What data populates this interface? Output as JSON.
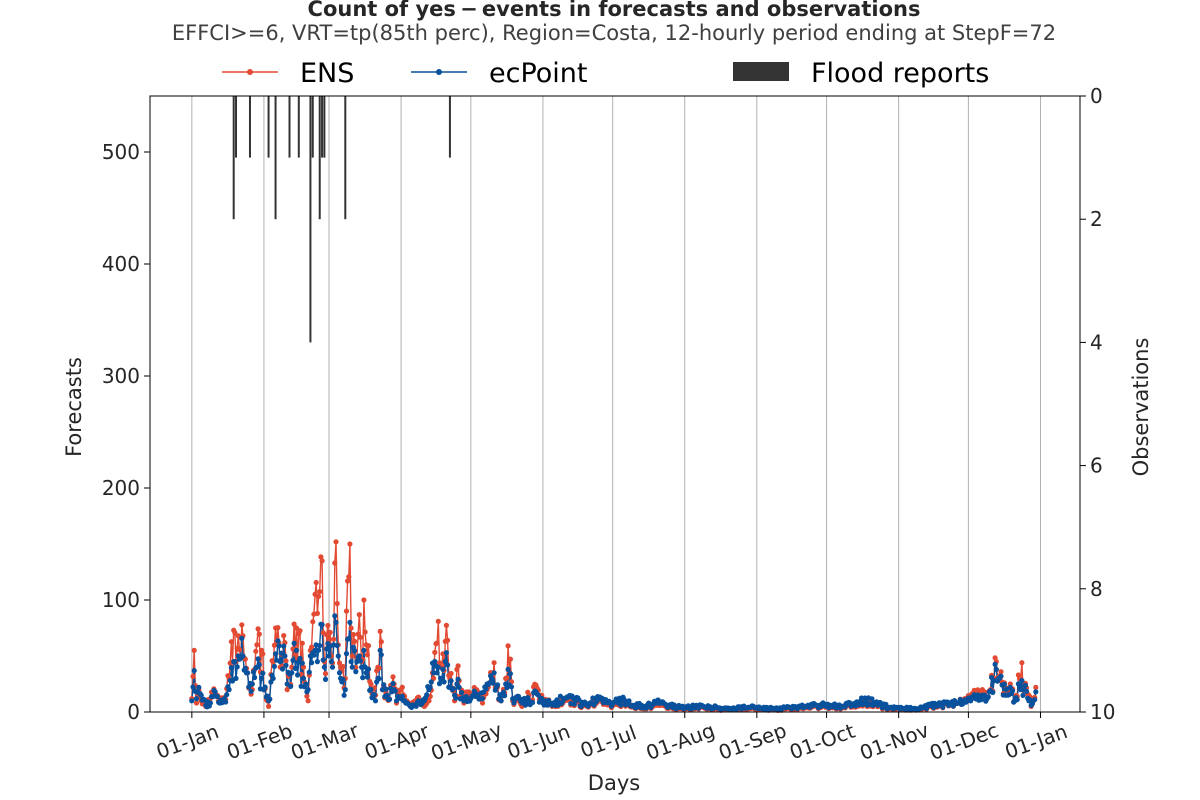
{
  "chart_data": {
    "type": "line",
    "title": "Count of yes − events in forecasts and observations",
    "subtitle": "EFFCI>=6, VRT=tp(85th perc), Region=Costa, 12-hourly period ending at StepF=72",
    "xlabel": "Days",
    "ylabel": "Forecasts",
    "ylabel_right": "Observations",
    "xtick_labels": [
      "01-Jan",
      "01-Feb",
      "01-Mar",
      "01-Apr",
      "01-May",
      "01-Jun",
      "01-Jul",
      "01-Aug",
      "01-Sep",
      "01-Oct",
      "01-Nov",
      "01-Dec",
      "01-Jan"
    ],
    "xtick_days": [
      0,
      31,
      59,
      90,
      120,
      151,
      181,
      212,
      243,
      273,
      304,
      334,
      365
    ],
    "xlim": [
      -18,
      382
    ],
    "ylim": [
      0,
      550
    ],
    "yticks": [
      0,
      100,
      200,
      300,
      400,
      500
    ],
    "y2lim": [
      10,
      0
    ],
    "y2ticks": [
      0,
      2,
      4,
      6,
      8,
      10
    ],
    "grid": "vertical",
    "legend": {
      "placement": "top",
      "entries": [
        {
          "label": "ENS",
          "kind": "line-marker",
          "color": "#e34a33"
        },
        {
          "label": "ecPoint",
          "kind": "line-marker",
          "color": "#08519c"
        },
        {
          "label": "Flood reports",
          "kind": "bar",
          "color": "#333333"
        }
      ]
    },
    "series": [
      {
        "name": "ENS",
        "color": "#e34a33",
        "anchors": [
          [
            0,
            12
          ],
          [
            1,
            55
          ],
          [
            2,
            8
          ],
          [
            3,
            20
          ],
          [
            4,
            10
          ],
          [
            6,
            5
          ],
          [
            8,
            12
          ],
          [
            10,
            18
          ],
          [
            12,
            10
          ],
          [
            14,
            13
          ],
          [
            16,
            30
          ],
          [
            18,
            73
          ],
          [
            19,
            45
          ],
          [
            20,
            68
          ],
          [
            21,
            48
          ],
          [
            22,
            68
          ],
          [
            24,
            35
          ],
          [
            26,
            20
          ],
          [
            28,
            60
          ],
          [
            30,
            55
          ],
          [
            31,
            20
          ],
          [
            33,
            5
          ],
          [
            35,
            45
          ],
          [
            36,
            75
          ],
          [
            38,
            40
          ],
          [
            40,
            62
          ],
          [
            41,
            20
          ],
          [
            43,
            40
          ],
          [
            45,
            75
          ],
          [
            46,
            70
          ],
          [
            48,
            40
          ],
          [
            50,
            10
          ],
          [
            51,
            55
          ],
          [
            53,
            105
          ],
          [
            54,
            88
          ],
          [
            56,
            135
          ],
          [
            57,
            45
          ],
          [
            59,
            65
          ],
          [
            60,
            50
          ],
          [
            61,
            65
          ],
          [
            62,
            152
          ],
          [
            63,
            60
          ],
          [
            64,
            40
          ],
          [
            66,
            30
          ],
          [
            67,
            117
          ],
          [
            68,
            150
          ],
          [
            69,
            50
          ],
          [
            71,
            48
          ],
          [
            72,
            87
          ],
          [
            73,
            45
          ],
          [
            74,
            100
          ],
          [
            75,
            60
          ],
          [
            77,
            25
          ],
          [
            79,
            15
          ],
          [
            80,
            40
          ],
          [
            81,
            72
          ],
          [
            82,
            20
          ],
          [
            84,
            12
          ],
          [
            86,
            22
          ],
          [
            87,
            25
          ],
          [
            88,
            8
          ],
          [
            90,
            20
          ],
          [
            92,
            10
          ],
          [
            94,
            5
          ],
          [
            96,
            10
          ],
          [
            98,
            10
          ],
          [
            100,
            5
          ],
          [
            102,
            10
          ],
          [
            104,
            30
          ],
          [
            106,
            81
          ],
          [
            107,
            40
          ],
          [
            108,
            52
          ],
          [
            109,
            63
          ],
          [
            110,
            64
          ],
          [
            111,
            30
          ],
          [
            113,
            10
          ],
          [
            114,
            38
          ],
          [
            115,
            28
          ],
          [
            117,
            8
          ],
          [
            119,
            18
          ],
          [
            120,
            15
          ],
          [
            121,
            17
          ],
          [
            123,
            18
          ],
          [
            125,
            8
          ],
          [
            127,
            20
          ],
          [
            129,
            35
          ],
          [
            130,
            44
          ],
          [
            131,
            20
          ],
          [
            133,
            10
          ],
          [
            135,
            30
          ],
          [
            136,
            59
          ],
          [
            138,
            10
          ],
          [
            140,
            12
          ],
          [
            142,
            5
          ],
          [
            145,
            15
          ],
          [
            146,
            10
          ],
          [
            148,
            24
          ],
          [
            150,
            15
          ],
          [
            155,
            5
          ],
          [
            160,
            10
          ],
          [
            165,
            8
          ],
          [
            170,
            5
          ],
          [
            175,
            10
          ],
          [
            180,
            6
          ],
          [
            185,
            8
          ],
          [
            190,
            5
          ],
          [
            195,
            4
          ],
          [
            200,
            6
          ],
          [
            210,
            3
          ],
          [
            220,
            4
          ],
          [
            230,
            2
          ],
          [
            240,
            3
          ],
          [
            250,
            2
          ],
          [
            260,
            3
          ],
          [
            270,
            5
          ],
          [
            280,
            4
          ],
          [
            290,
            8
          ],
          [
            300,
            3
          ],
          [
            310,
            2
          ],
          [
            320,
            5
          ],
          [
            330,
            8
          ],
          [
            335,
            12
          ],
          [
            340,
            20
          ],
          [
            342,
            12
          ],
          [
            345,
            30
          ],
          [
            346,
            45
          ],
          [
            347,
            30
          ],
          [
            348,
            36
          ],
          [
            350,
            15
          ],
          [
            352,
            25
          ],
          [
            354,
            10
          ],
          [
            356,
            30
          ],
          [
            357,
            44
          ],
          [
            358,
            20
          ],
          [
            360,
            15
          ],
          [
            361,
            5
          ],
          [
            363,
            22
          ]
        ]
      },
      {
        "name": "ecPoint",
        "color": "#08519c",
        "anchors": [
          [
            0,
            10
          ],
          [
            1,
            37
          ],
          [
            2,
            12
          ],
          [
            3,
            22
          ],
          [
            4,
            15
          ],
          [
            6,
            6
          ],
          [
            8,
            8
          ],
          [
            10,
            18
          ],
          [
            12,
            8
          ],
          [
            14,
            12
          ],
          [
            16,
            20
          ],
          [
            18,
            45
          ],
          [
            19,
            30
          ],
          [
            20,
            50
          ],
          [
            21,
            48
          ],
          [
            22,
            50
          ],
          [
            24,
            35
          ],
          [
            26,
            25
          ],
          [
            28,
            40
          ],
          [
            30,
            30
          ],
          [
            31,
            20
          ],
          [
            33,
            10
          ],
          [
            35,
            30
          ],
          [
            36,
            52
          ],
          [
            38,
            45
          ],
          [
            40,
            50
          ],
          [
            41,
            25
          ],
          [
            43,
            35
          ],
          [
            45,
            55
          ],
          [
            46,
            45
          ],
          [
            48,
            30
          ],
          [
            50,
            20
          ],
          [
            51,
            50
          ],
          [
            53,
            55
          ],
          [
            54,
            45
          ],
          [
            56,
            78
          ],
          [
            57,
            40
          ],
          [
            59,
            50
          ],
          [
            60,
            45
          ],
          [
            61,
            60
          ],
          [
            62,
            80
          ],
          [
            63,
            50
          ],
          [
            64,
            30
          ],
          [
            66,
            20
          ],
          [
            67,
            65
          ],
          [
            68,
            80
          ],
          [
            69,
            40
          ],
          [
            71,
            45
          ],
          [
            72,
            50
          ],
          [
            73,
            40
          ],
          [
            74,
            55
          ],
          [
            75,
            35
          ],
          [
            77,
            20
          ],
          [
            79,
            10
          ],
          [
            80,
            30
          ],
          [
            81,
            55
          ],
          [
            82,
            20
          ],
          [
            84,
            15
          ],
          [
            86,
            18
          ],
          [
            87,
            20
          ],
          [
            88,
            10
          ],
          [
            90,
            12
          ],
          [
            92,
            8
          ],
          [
            94,
            5
          ],
          [
            96,
            6
          ],
          [
            98,
            8
          ],
          [
            100,
            10
          ],
          [
            102,
            20
          ],
          [
            104,
            35
          ],
          [
            106,
            40
          ],
          [
            107,
            30
          ],
          [
            108,
            38
          ],
          [
            109,
            45
          ],
          [
            110,
            42
          ],
          [
            111,
            22
          ],
          [
            113,
            15
          ],
          [
            114,
            25
          ],
          [
            115,
            22
          ],
          [
            117,
            10
          ],
          [
            119,
            10
          ],
          [
            120,
            12
          ],
          [
            121,
            15
          ],
          [
            123,
            14
          ],
          [
            125,
            12
          ],
          [
            127,
            25
          ],
          [
            129,
            30
          ],
          [
            130,
            35
          ],
          [
            131,
            22
          ],
          [
            133,
            10
          ],
          [
            135,
            25
          ],
          [
            136,
            38
          ],
          [
            138,
            12
          ],
          [
            140,
            14
          ],
          [
            142,
            8
          ],
          [
            145,
            10
          ],
          [
            146,
            8
          ],
          [
            148,
            18
          ],
          [
            150,
            12
          ],
          [
            155,
            6
          ],
          [
            160,
            12
          ],
          [
            165,
            10
          ],
          [
            170,
            6
          ],
          [
            175,
            12
          ],
          [
            180,
            8
          ],
          [
            185,
            10
          ],
          [
            190,
            6
          ],
          [
            195,
            5
          ],
          [
            200,
            8
          ],
          [
            210,
            4
          ],
          [
            220,
            5
          ],
          [
            230,
            3
          ],
          [
            240,
            4
          ],
          [
            250,
            3
          ],
          [
            260,
            4
          ],
          [
            270,
            6
          ],
          [
            280,
            5
          ],
          [
            290,
            10
          ],
          [
            300,
            4
          ],
          [
            310,
            3
          ],
          [
            320,
            6
          ],
          [
            330,
            8
          ],
          [
            335,
            10
          ],
          [
            340,
            15
          ],
          [
            342,
            12
          ],
          [
            345,
            28
          ],
          [
            346,
            38
          ],
          [
            347,
            30
          ],
          [
            348,
            32
          ],
          [
            350,
            15
          ],
          [
            352,
            22
          ],
          [
            354,
            10
          ],
          [
            356,
            22
          ],
          [
            357,
            28
          ],
          [
            358,
            20
          ],
          [
            360,
            10
          ],
          [
            361,
            6
          ],
          [
            363,
            18
          ]
        ]
      },
      {
        "name": "Flood reports",
        "kind": "bar",
        "color": "#333333",
        "axis": "right",
        "points": [
          [
            18,
            2
          ],
          [
            19,
            1
          ],
          [
            25,
            1
          ],
          [
            33,
            1
          ],
          [
            36,
            2
          ],
          [
            42,
            1
          ],
          [
            46,
            1
          ],
          [
            51,
            4
          ],
          [
            52,
            1
          ],
          [
            55,
            2
          ],
          [
            56,
            1
          ],
          [
            57,
            1
          ],
          [
            66,
            2
          ],
          [
            111,
            1
          ]
        ]
      }
    ]
  }
}
